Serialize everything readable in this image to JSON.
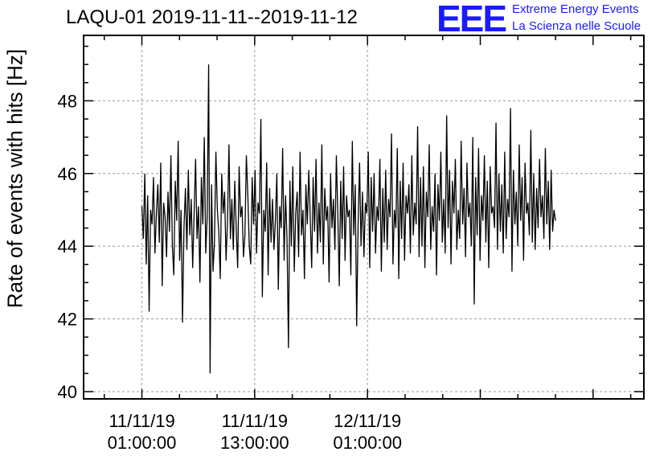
{
  "chart_data": {
    "type": "line",
    "title": "LAQU-01 2019-11-11--2019-11-12",
    "xlabel": "",
    "ylabel": "Rate of events with hits [Hz]",
    "ylim": [
      39.8,
      49.8
    ],
    "xlim_hours": [
      -5.2,
      54.4
    ],
    "x_ticks": [
      {
        "hours": 1,
        "date": "11/11/19",
        "time": "01:00:00"
      },
      {
        "hours": 13,
        "date": "11/11/19",
        "time": "13:00:00"
      },
      {
        "hours": 25,
        "date": "12/11/19",
        "time": "01:00:00"
      }
    ],
    "y_ticks": [
      40,
      42,
      44,
      46,
      48
    ],
    "grid": true,
    "series": [
      {
        "values": [
          45.1,
          44.2,
          46.0,
          43.5,
          45.4,
          42.2,
          45.0,
          44.6,
          45.9,
          43.8,
          44.9,
          45.7,
          44.1,
          46.3,
          42.9,
          45.2,
          44.8,
          43.7,
          45.5,
          44.4,
          46.5,
          44.0,
          43.2,
          45.8,
          44.7,
          46.9,
          43.6,
          45.0,
          41.9,
          44.5,
          45.6,
          43.9,
          46.1,
          44.3,
          45.3,
          43.4,
          44.9,
          46.4,
          44.2,
          45.1,
          43.0,
          45.9,
          44.6,
          47.0,
          43.8,
          44.8,
          49.0,
          40.5,
          45.7,
          43.3,
          44.1,
          46.6,
          45.0,
          44.4,
          43.1,
          46.0,
          44.9,
          45.5,
          43.6,
          44.7,
          46.8,
          44.2,
          45.3,
          43.9,
          45.8,
          44.5,
          43.4,
          46.2,
          44.8,
          45.1,
          43.7,
          44.3,
          46.5,
          45.4,
          44.0,
          43.5,
          45.9,
          44.6,
          46.1,
          43.8,
          45.2,
          44.9,
          47.5,
          42.6,
          45.0,
          44.4,
          46.3,
          43.2,
          45.6,
          44.1,
          45.3,
          43.9,
          44.7,
          46.0,
          42.8,
          45.1,
          44.5,
          46.7,
          43.6,
          45.4,
          44.2,
          41.2,
          45.8,
          44.0,
          46.2,
          43.3,
          44.9,
          45.5,
          43.7,
          46.6,
          44.3,
          45.0,
          43.1,
          45.7,
          44.6,
          46.1,
          44.8,
          43.4,
          45.9,
          44.4,
          46.4,
          43.8,
          45.2,
          44.1,
          46.8,
          43.5,
          45.6,
          44.7,
          45.1,
          43.0,
          46.0,
          44.5,
          45.3,
          43.9,
          46.5,
          44.9,
          42.9,
          45.8,
          44.2,
          46.2,
          43.6,
          45.4,
          44.8,
          45.0,
          43.2,
          46.9,
          44.3,
          45.7,
          41.8,
          44.6,
          46.3,
          44.0,
          45.5,
          43.7,
          45.2,
          44.9,
          46.6,
          43.4,
          45.9,
          44.4,
          46.0,
          43.8,
          45.1,
          44.7,
          46.4,
          43.3,
          45.6,
          44.1,
          46.1,
          43.9,
          45.3,
          44.8,
          47.1,
          43.5,
          45.0,
          44.5,
          46.7,
          43.1,
          45.8,
          44.2,
          46.3,
          43.6,
          45.4,
          44.9,
          45.7,
          43.8,
          46.5,
          44.3,
          45.2,
          44.6,
          47.3,
          43.7,
          45.9,
          44.0,
          46.2,
          43.4,
          45.5,
          44.8,
          46.8,
          43.9,
          45.1,
          44.4,
          46.0,
          43.2,
          45.7,
          44.7,
          46.6,
          44.1,
          45.3,
          43.8,
          47.6,
          44.5,
          46.1,
          43.5,
          45.8,
          44.9,
          46.4,
          43.9,
          45.0,
          44.2,
          46.9,
          44.6,
          45.6,
          43.7,
          46.3,
          44.8,
          45.2,
          44.0,
          47.0,
          42.4,
          45.9,
          44.3,
          46.7,
          43.6,
          45.4,
          44.7,
          46.5,
          44.1,
          45.8,
          43.4,
          46.2,
          44.9,
          45.1,
          44.5,
          47.4,
          43.9,
          46.0,
          44.4,
          45.7,
          43.8,
          46.6,
          44.2,
          45.3,
          44.8,
          47.8,
          43.3,
          46.1,
          44.6,
          45.5,
          44.0,
          46.8,
          44.7,
          45.9,
          43.6,
          46.3,
          44.9,
          45.2,
          44.3,
          47.2,
          44.1,
          46.0,
          43.9,
          45.6,
          44.5,
          46.4,
          44.8,
          45.4,
          44.2,
          46.7,
          44.6,
          45.8,
          43.9,
          46.1,
          44.4,
          45.0,
          44.7
        ]
      }
    ]
  }
}
